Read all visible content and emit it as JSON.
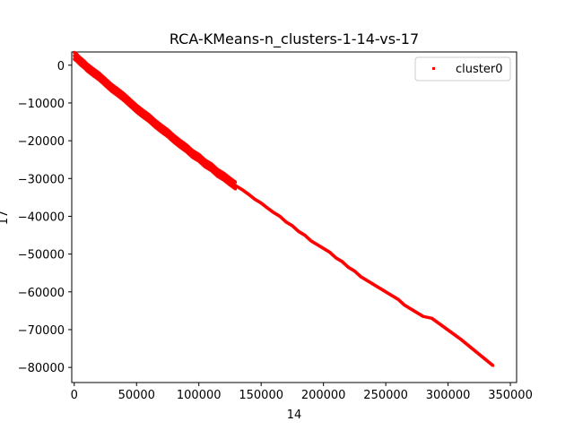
{
  "chart_data": {
    "type": "scatter",
    "title": "RCA-KMeans-n_clusters-1-14-vs-17",
    "xlabel": "14",
    "ylabel": "17",
    "xlim": [
      -2000,
      355000
    ],
    "ylim": [
      -84000,
      3500
    ],
    "xticks": [
      0,
      50000,
      100000,
      150000,
      200000,
      250000,
      300000,
      350000
    ],
    "xtick_labels": [
      "0",
      "50000",
      "100000",
      "150000",
      "200000",
      "250000",
      "300000",
      "350000"
    ],
    "yticks": [
      0,
      -10000,
      -20000,
      -30000,
      -40000,
      -50000,
      -60000,
      -70000,
      -80000
    ],
    "ytick_labels": [
      "0",
      "−10000",
      "−20000",
      "−30000",
      "−40000",
      "−50000",
      "−60000",
      "−70000",
      "−80000"
    ],
    "grid": false,
    "legend_position": "top-right",
    "series": [
      {
        "name": "cluster0",
        "color": "#ff0000",
        "marker": "dot",
        "points": [
          [
            0,
            2500
          ],
          [
            2000,
            2000
          ],
          [
            5000,
            1000
          ],
          [
            8000,
            200
          ],
          [
            10000,
            -500
          ],
          [
            15000,
            -1800
          ],
          [
            20000,
            -3000
          ],
          [
            25000,
            -4500
          ],
          [
            30000,
            -6000
          ],
          [
            35000,
            -7200
          ],
          [
            40000,
            -8500
          ],
          [
            45000,
            -10000
          ],
          [
            50000,
            -11500
          ],
          [
            55000,
            -12800
          ],
          [
            60000,
            -14000
          ],
          [
            65000,
            -15500
          ],
          [
            70000,
            -16800
          ],
          [
            75000,
            -18000
          ],
          [
            80000,
            -19500
          ],
          [
            85000,
            -20800
          ],
          [
            90000,
            -22000
          ],
          [
            95000,
            -23500
          ],
          [
            100000,
            -24500
          ],
          [
            105000,
            -26000
          ],
          [
            110000,
            -27000
          ],
          [
            115000,
            -28500
          ],
          [
            120000,
            -29500
          ],
          [
            125000,
            -30800
          ],
          [
            130000,
            -32000
          ],
          [
            135000,
            -33000
          ],
          [
            140000,
            -34200
          ],
          [
            145000,
            -35500
          ],
          [
            150000,
            -36500
          ],
          [
            155000,
            -37800
          ],
          [
            160000,
            -39000
          ],
          [
            165000,
            -40000
          ],
          [
            170000,
            -41500
          ],
          [
            175000,
            -42500
          ],
          [
            180000,
            -44000
          ],
          [
            185000,
            -45000
          ],
          [
            190000,
            -46500
          ],
          [
            195000,
            -47500
          ],
          [
            200000,
            -48500
          ],
          [
            205000,
            -49500
          ],
          [
            210000,
            -51000
          ],
          [
            215000,
            -52000
          ],
          [
            220000,
            -53500
          ],
          [
            225000,
            -54500
          ],
          [
            230000,
            -56000
          ],
          [
            235000,
            -57000
          ],
          [
            240000,
            -58000
          ],
          [
            245000,
            -59000
          ],
          [
            250000,
            -60000
          ],
          [
            255000,
            -61000
          ],
          [
            260000,
            -62000
          ],
          [
            265000,
            -63500
          ],
          [
            270000,
            -64500
          ],
          [
            275000,
            -65500
          ],
          [
            280000,
            -66500
          ],
          [
            287000,
            -67000
          ],
          [
            310000,
            -72500
          ],
          [
            336000,
            -79500
          ]
        ]
      }
    ]
  }
}
